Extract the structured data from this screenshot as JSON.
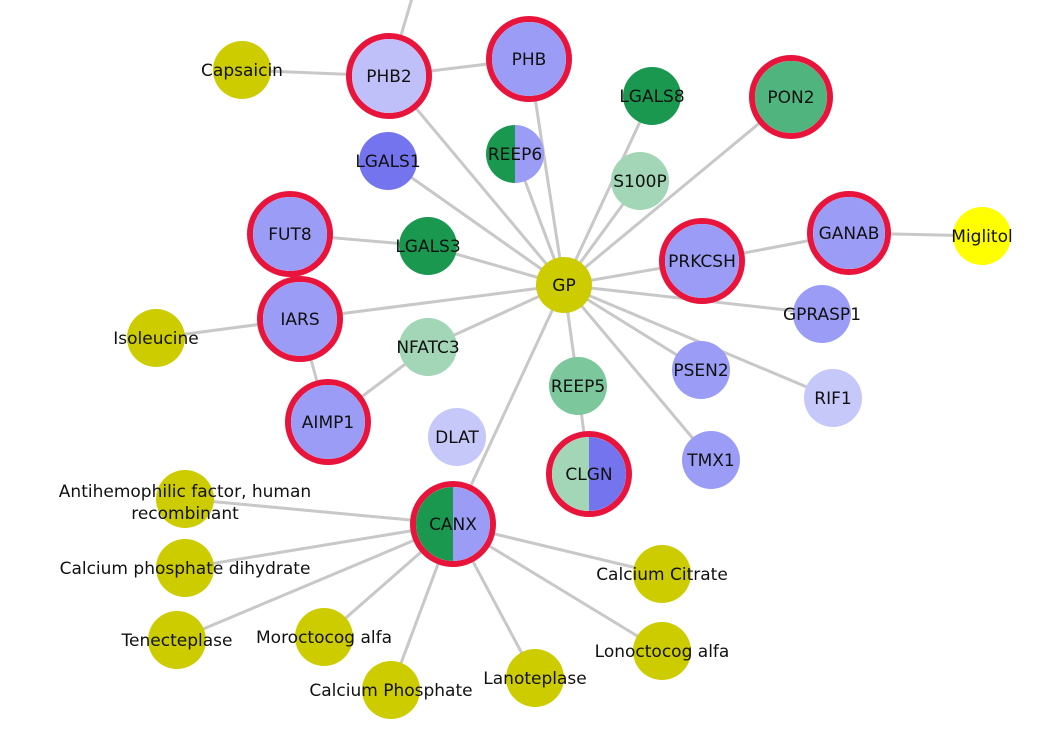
{
  "colors": {
    "edge": "#c8c8c8",
    "ring": "#e8143c",
    "drug": "#cccc00",
    "drug_bright": "#ffff00",
    "blue": "#9a9cf6",
    "blue_dark": "#7474ee",
    "blue_light": "#c6c8fa",
    "blue_pale": "#bfc0fa",
    "green_dark": "#1a9850",
    "green_mid": "#50b47e",
    "green_soft": "#7cc89c",
    "green_pale": "#a2d6b6"
  },
  "nodes": [
    {
      "id": "GP",
      "label": "GP",
      "fill": "drug"
    },
    {
      "id": "PHB2",
      "label": "PHB2",
      "fill": "blue_pale",
      "ring": true
    },
    {
      "id": "PHB",
      "label": "PHB",
      "fill": "blue",
      "ring": true
    },
    {
      "id": "Capsaicin",
      "label": "Capsaicin",
      "fill": "drug"
    },
    {
      "id": "LGALS8",
      "label": "LGALS8",
      "fill": "green_dark"
    },
    {
      "id": "PON2",
      "label": "PON2",
      "fill": "green_mid",
      "ring": true
    },
    {
      "id": "LGALS1",
      "label": "LGALS1",
      "fill": "blue_dark"
    },
    {
      "id": "REEP6",
      "label": "REEP6",
      "fill": "green_dark",
      "fill2": "blue"
    },
    {
      "id": "S100P",
      "label": "S100P",
      "fill": "green_pale"
    },
    {
      "id": "FUT8",
      "label": "FUT8",
      "fill": "blue",
      "ring": true
    },
    {
      "id": "LGALS3",
      "label": "LGALS3",
      "fill": "green_dark"
    },
    {
      "id": "GANAB",
      "label": "GANAB",
      "fill": "blue",
      "ring": true
    },
    {
      "id": "Miglitol",
      "label": "Miglitol",
      "fill": "drug_bright"
    },
    {
      "id": "PRKCSH",
      "label": "PRKCSH",
      "fill": "blue",
      "ring": true
    },
    {
      "id": "IARS",
      "label": "IARS",
      "fill": "blue",
      "ring": true
    },
    {
      "id": "GPRASP1",
      "label": "GPRASP1",
      "fill": "blue"
    },
    {
      "id": "Isoleucine",
      "label": "Isoleucine",
      "fill": "drug"
    },
    {
      "id": "NFATC3",
      "label": "NFATC3",
      "fill": "green_pale"
    },
    {
      "id": "REEP5",
      "label": "REEP5",
      "fill": "green_soft"
    },
    {
      "id": "PSEN2",
      "label": "PSEN2",
      "fill": "blue"
    },
    {
      "id": "RIF1",
      "label": "RIF1",
      "fill": "blue_light"
    },
    {
      "id": "AIMP1",
      "label": "AIMP1",
      "fill": "blue",
      "ring": true
    },
    {
      "id": "DLAT",
      "label": "DLAT",
      "fill": "blue_light"
    },
    {
      "id": "CLGN",
      "label": "CLGN",
      "fill": "green_pale",
      "fill2": "blue_dark",
      "ring": true
    },
    {
      "id": "TMX1",
      "label": "TMX1",
      "fill": "blue"
    },
    {
      "id": "AHF",
      "label": "Antihemophilic factor, human\nrecombinant",
      "fill": "drug"
    },
    {
      "id": "CANX",
      "label": "CANX",
      "fill": "green_dark",
      "fill2": "blue",
      "ring": true
    },
    {
      "id": "CaPhosDi",
      "label": "Calcium phosphate dihydrate",
      "fill": "drug"
    },
    {
      "id": "CaCitrate",
      "label": "Calcium Citrate",
      "fill": "drug"
    },
    {
      "id": "Tenecteplase",
      "label": "Tenecteplase",
      "fill": "drug"
    },
    {
      "id": "Moroctocog",
      "label": "Moroctocog alfa",
      "fill": "drug"
    },
    {
      "id": "Lonoctocog",
      "label": "Lonoctocog alfa",
      "fill": "drug"
    },
    {
      "id": "Lanoteplase",
      "label": "Lanoteplase",
      "fill": "drug"
    },
    {
      "id": "CaPhos",
      "label": "Calcium Phosphate",
      "fill": "drug"
    }
  ],
  "edges": [
    [
      "GP",
      "PHB2"
    ],
    [
      "GP",
      "PHB"
    ],
    [
      "GP",
      "PON2"
    ],
    [
      "GP",
      "LGALS8"
    ],
    [
      "GP",
      "LGALS1"
    ],
    [
      "GP",
      "REEP6"
    ],
    [
      "GP",
      "S100P"
    ],
    [
      "GP",
      "LGALS3"
    ],
    [
      "GP",
      "PRKCSH"
    ],
    [
      "GP",
      "IARS"
    ],
    [
      "GP",
      "GPRASP1"
    ],
    [
      "GP",
      "NFATC3"
    ],
    [
      "GP",
      "REEP5"
    ],
    [
      "GP",
      "PSEN2"
    ],
    [
      "GP",
      "RIF1"
    ],
    [
      "GP",
      "TMX1"
    ],
    [
      "GP",
      "CANX"
    ],
    [
      "PHB2",
      "PHB"
    ],
    [
      "PHB2",
      "Capsaicin"
    ],
    [
      "PHB2",
      "Offscreen"
    ],
    [
      "FUT8",
      "LGALS3"
    ],
    [
      "PRKCSH",
      "GANAB"
    ],
    [
      "GANAB",
      "Miglitol"
    ],
    [
      "IARS",
      "Isoleucine"
    ],
    [
      "IARS",
      "AIMP1"
    ],
    [
      "AIMP1",
      "NFATC3"
    ],
    [
      "REEP5",
      "CLGN"
    ],
    [
      "CANX",
      "AHF"
    ],
    [
      "CANX",
      "CaPhosDi"
    ],
    [
      "CANX",
      "CaCitrate"
    ],
    [
      "CANX",
      "Tenecteplase"
    ],
    [
      "CANX",
      "Moroctocog"
    ],
    [
      "CANX",
      "Lonoctocog"
    ],
    [
      "CANX",
      "Lanoteplase"
    ],
    [
      "CANX",
      "CaPhos"
    ]
  ]
}
